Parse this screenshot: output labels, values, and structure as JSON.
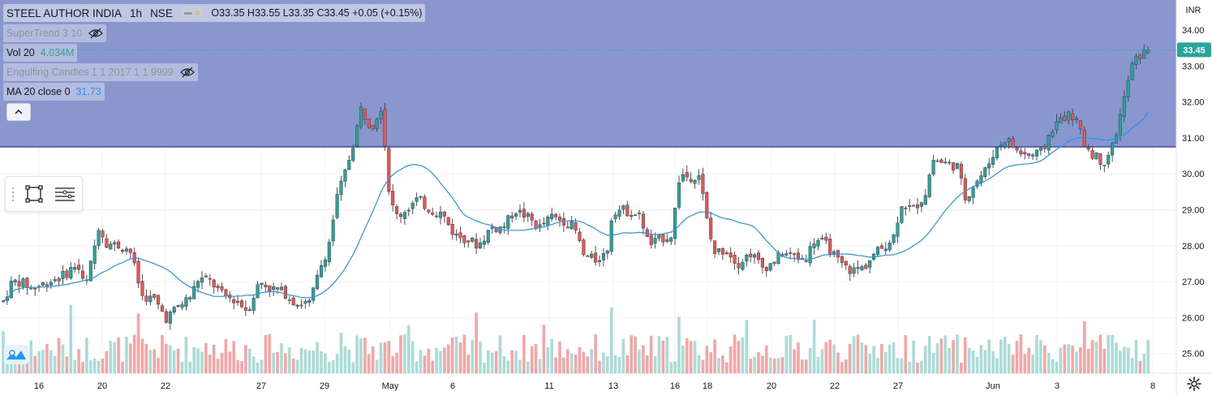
{
  "header": {
    "symbol": "STEEL AUTHOR INDIA",
    "interval": "1h",
    "exchange": "NSE",
    "open_label": "O",
    "open": "33.35",
    "high_label": "H",
    "high": "33.55",
    "low_label": "L",
    "low": "33.35",
    "close_label": "C",
    "close": "33.45",
    "change": "+0.05 (+0.15%)"
  },
  "indicators": {
    "supertrend": "SuperTrend 3 10",
    "vol_label": "Vol 20",
    "vol_value": "4.034M",
    "engulfing": "Engulfing Candles 1 1 2017 1 1 9999",
    "ma_label": "MA 20 close 0",
    "ma_value": "31.73"
  },
  "currency": "INR",
  "last_price_label": "33.45",
  "colors": {
    "up": "#26a69a",
    "down": "#ef5350",
    "vol_up": "#a9dcd6",
    "vol_down": "#f5a5a3",
    "ma": "#2196f3",
    "zone_fill": "#7d8bc9",
    "zone_line": "#283593",
    "grid": "#f0f3fa"
  },
  "icons": {
    "hide_icon": "eye-crossed-icon",
    "collapse_icon": "chevron-up-icon",
    "rectangle_tool": "rectangle-icon",
    "lines_tool": "lines-icon",
    "logo": "tradingview-logo-icon",
    "settings": "gear-icon"
  },
  "chart_data": {
    "type": "candlestick",
    "title": "STEEL AUTHOR INDIA · 1h · NSE",
    "y_axis": {
      "side": "right",
      "range": [
        24.6,
        34.5
      ],
      "ticks": [
        "34.00",
        "33.00",
        "32.00",
        "31.00",
        "30.00",
        "29.00",
        "28.00",
        "27.00",
        "26.00",
        "25.00"
      ]
    },
    "x_axis": {
      "ticks": [
        "16",
        "20",
        "22",
        "27",
        "29",
        "May",
        "6",
        "11",
        "13",
        "16",
        "18",
        "20",
        "22",
        "27",
        "Jun",
        "3",
        "8"
      ]
    },
    "grid": true,
    "highlight_zone": {
      "from_price": 30.75,
      "to_price": "top",
      "label": "supply zone rectangle"
    },
    "last_price": 33.45,
    "ma_last": 31.73,
    "candles": [],
    "volume": [],
    "ma20": []
  }
}
